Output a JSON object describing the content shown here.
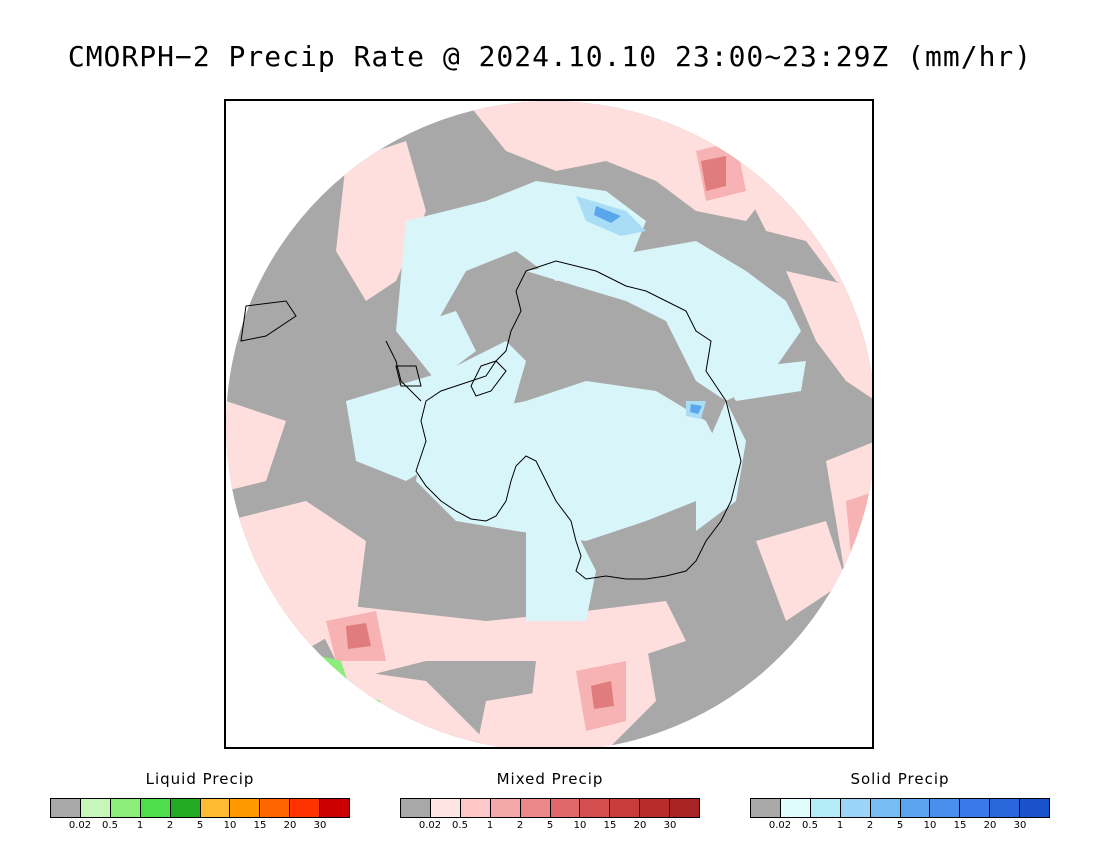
{
  "title": "CMORPH−2 Precip Rate @ 2024.10.10 23:00~23:29Z (mm/hr)",
  "map": {
    "projection": "south-polar-stereographic",
    "colors": {
      "no_precip": "#a8a8a8",
      "mixed_light": "#ffdede",
      "mixed_mid": "#f7b3b3",
      "mixed_high": "#e07c7c",
      "solid_light": "#d8f6fa",
      "solid_mid": "#a9ddf5",
      "solid_high": "#5aa6ec",
      "liquid_light": "#8ded7a",
      "coast": "#000000"
    }
  },
  "legends": [
    {
      "title": "Liquid Precip",
      "colors": [
        "#a8a8a8",
        "#c7f7b8",
        "#8ded7a",
        "#4ddd4d",
        "#22aa22",
        "#ffbb33",
        "#ff9900",
        "#ff6600",
        "#ff3300",
        "#cc0000"
      ],
      "ticks": [
        "0.02",
        "0.5",
        "1",
        "2",
        "5",
        "10",
        "15",
        "20",
        "30"
      ]
    },
    {
      "title": "Mixed Precip",
      "colors": [
        "#a8a8a8",
        "#ffe4e4",
        "#ffc8c8",
        "#f4a8a8",
        "#ec8888",
        "#e06868",
        "#d45050",
        "#c83c3c",
        "#b82c2c",
        "#a82424"
      ],
      "ticks": [
        "0.02",
        "0.5",
        "1",
        "2",
        "5",
        "10",
        "15",
        "20",
        "30"
      ]
    },
    {
      "title": "Solid Precip",
      "colors": [
        "#a8a8a8",
        "#e0fcfc",
        "#b4ecf8",
        "#9ad4f8",
        "#78bcf4",
        "#5aa4f0",
        "#4890ec",
        "#3a7ae8",
        "#2a66dc",
        "#1a52cc"
      ],
      "ticks": [
        "0.02",
        "0.5",
        "1",
        "2",
        "5",
        "10",
        "15",
        "20",
        "30"
      ]
    }
  ]
}
